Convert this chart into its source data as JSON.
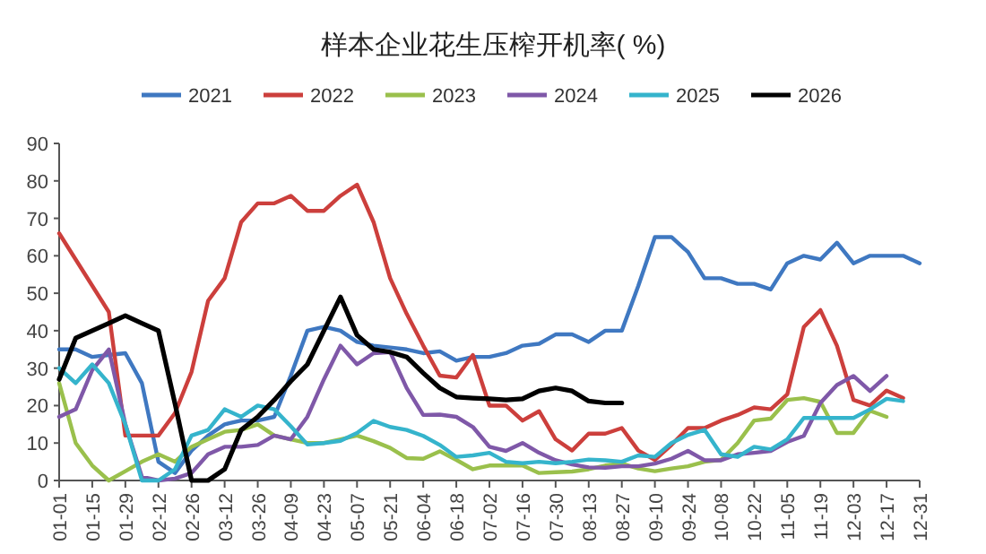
{
  "chart_data": {
    "type": "line",
    "title": "样本企业花生压榨开机率( %)",
    "categories": [
      "01-01",
      null,
      "01-15",
      null,
      "01-29",
      null,
      "02-12",
      null,
      "02-26",
      null,
      "03-12",
      null,
      "03-26",
      null,
      "04-09",
      null,
      "04-23",
      null,
      "05-07",
      null,
      "05-21",
      null,
      "06-04",
      null,
      "06-18",
      null,
      "07-02",
      null,
      "07-16",
      null,
      "07-30",
      null,
      "08-13",
      null,
      "08-27",
      null,
      "09-10",
      null,
      "09-24",
      null,
      "10-08",
      null,
      "10-22",
      null,
      "11-05",
      null,
      "11-19",
      null,
      "12-03",
      null,
      "12-17",
      null,
      "12-31"
    ],
    "series": [
      {
        "name": "2021",
        "color": "#3f78c1",
        "values": [
          35,
          35,
          33,
          33.5,
          34,
          26,
          5,
          2,
          8,
          12,
          15,
          16,
          16,
          17,
          28,
          40,
          41,
          40,
          37,
          36,
          35.5,
          35,
          34,
          34.5,
          32,
          33,
          33,
          34,
          36,
          36.5,
          39,
          39,
          37,
          40,
          40,
          52,
          65,
          65,
          61,
          54,
          54,
          52.5,
          52.5,
          51,
          58,
          60,
          59,
          63.5,
          58,
          60,
          60,
          60,
          58
        ]
      },
      {
        "name": "2022",
        "color": "#cc3f3c",
        "values": [
          66,
          59,
          52,
          45,
          12,
          12,
          12,
          18,
          29,
          48,
          54,
          69,
          74,
          74,
          76,
          72,
          72,
          76,
          79,
          69,
          54,
          44.5,
          36,
          28,
          27.5,
          33.5,
          20,
          20,
          16,
          18.5,
          11,
          8,
          12.5,
          12.5,
          14,
          8,
          5.5,
          9.5,
          14,
          14,
          16,
          17.5,
          19.5,
          19,
          23,
          41,
          45.5,
          36,
          21.5,
          20,
          24,
          22,
          null
        ]
      },
      {
        "name": "2023",
        "color": "#9ac04c",
        "values": [
          26,
          10,
          4,
          0,
          2.5,
          5,
          7,
          5,
          9,
          11,
          13,
          13.5,
          15,
          12,
          11,
          10,
          10,
          11,
          12,
          10.5,
          8.7,
          6,
          5.8,
          7.8,
          5.5,
          3,
          4,
          4,
          4,
          2,
          2.2,
          2.4,
          3,
          4,
          4.5,
          3.2,
          2.5,
          3.2,
          3.8,
          5,
          5.5,
          10,
          16,
          16.5,
          21.5,
          22,
          21,
          12.7,
          12.7,
          18.6,
          17,
          null,
          null
        ]
      },
      {
        "name": "2024",
        "color": "#7f58a8",
        "values": [
          17,
          19,
          29.5,
          35,
          15,
          1,
          0,
          0.5,
          2,
          7,
          9,
          9,
          9.5,
          12,
          11,
          17,
          27,
          36,
          31,
          34,
          34.3,
          24.7,
          17.5,
          17.6,
          17,
          14.3,
          9,
          7.9,
          10,
          7.4,
          5.4,
          4.3,
          3.5,
          3.4,
          3.8,
          3.8,
          4.5,
          5.8,
          7.9,
          5.4,
          5.4,
          7,
          7.4,
          7.9,
          10.3,
          11.9,
          20.7,
          25.5,
          27.9,
          23.9,
          27.9,
          null,
          null
        ]
      },
      {
        "name": "2025",
        "color": "#35b4cc",
        "values": [
          30,
          26,
          31,
          26,
          15,
          0,
          0,
          3,
          12,
          13.5,
          19,
          17,
          20,
          19,
          14.5,
          9.6,
          10,
          10.6,
          12.7,
          15.9,
          14.3,
          13.5,
          11.9,
          9.5,
          6.3,
          6.7,
          7.4,
          5,
          4.6,
          5,
          4.6,
          5,
          5.6,
          5.4,
          5,
          6.7,
          6.3,
          10,
          12.2,
          13.5,
          7,
          6.3,
          9,
          8.3,
          11,
          16.7,
          16.7,
          16.7,
          16.7,
          19,
          21.8,
          21.2,
          null
        ]
      },
      {
        "name": "2026",
        "color": "#000000",
        "values": [
          27,
          38,
          40,
          42,
          44,
          42,
          40,
          20.5,
          0,
          0,
          3,
          13.5,
          17,
          21.5,
          26.5,
          31,
          40,
          49,
          38.8,
          35,
          34.3,
          33,
          28.7,
          24.7,
          22.3,
          22,
          21.8,
          21.5,
          21.8,
          23.9,
          24.7,
          23.9,
          21.2,
          20.7,
          20.7,
          null,
          null,
          null,
          null,
          null,
          null,
          null,
          null,
          null,
          null,
          null,
          null,
          null,
          null,
          null,
          null,
          null,
          null
        ]
      }
    ],
    "ylim": [
      0,
      90
    ],
    "yticks": [
      0,
      10,
      20,
      30,
      40,
      50,
      60,
      70,
      80,
      90
    ],
    "legend": "top",
    "grid": false
  }
}
